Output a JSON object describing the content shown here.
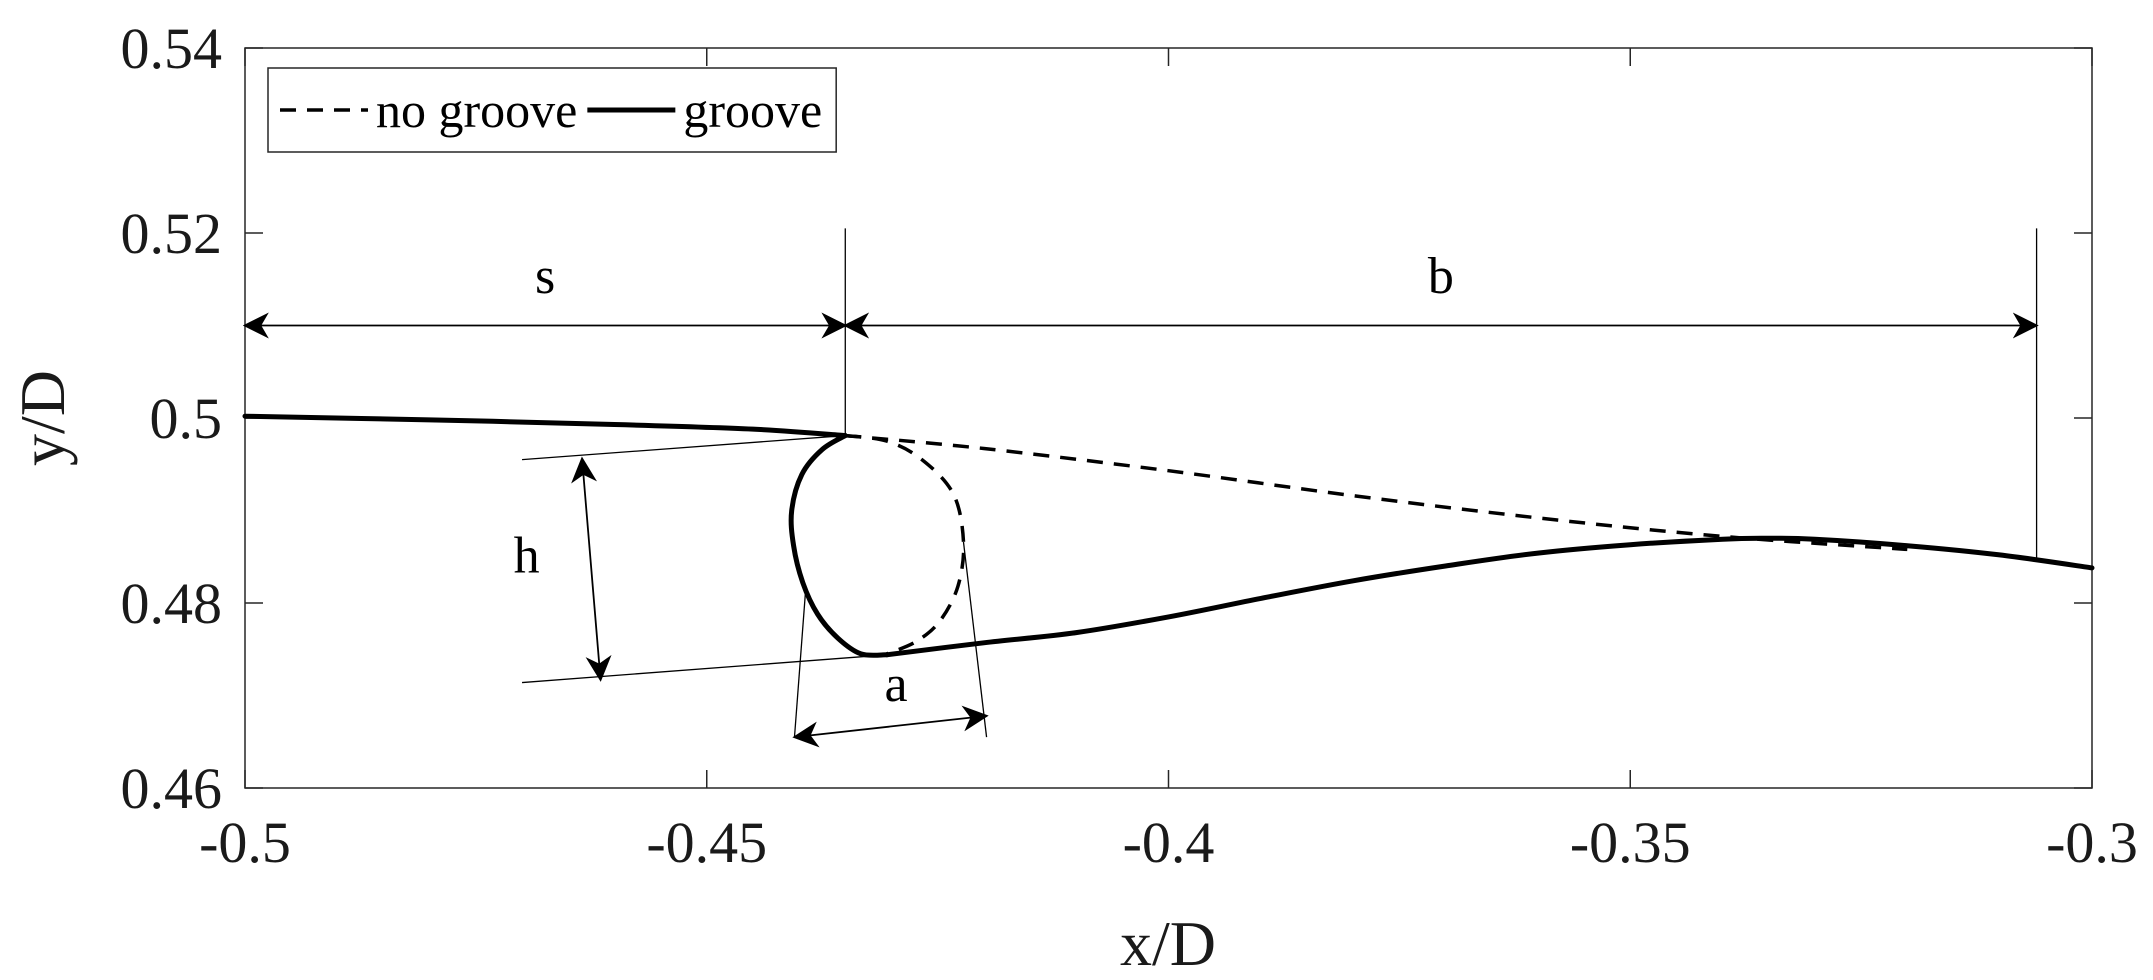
{
  "chart_data": {
    "type": "line",
    "xlabel": "x/D",
    "ylabel": "y/D",
    "xlim": [
      -0.5,
      -0.3
    ],
    "ylim": [
      0.46,
      0.54
    ],
    "xticks": [
      -0.5,
      -0.45,
      -0.4,
      -0.35,
      -0.3
    ],
    "xtick_labels": [
      "-0.5",
      "-0.45",
      "-0.4",
      "-0.35",
      "-0.3"
    ],
    "yticks": [
      0.46,
      0.48,
      0.5,
      0.52,
      0.54
    ],
    "ytick_labels": [
      "0.46",
      "0.48",
      "0.5",
      "0.52",
      "0.54"
    ],
    "grid": false,
    "legend": {
      "placement": "top-left",
      "orientation": "horizontal",
      "entries": [
        {
          "label": "no groove",
          "style": "dashed"
        },
        {
          "label": "groove",
          "style": "solid"
        }
      ]
    },
    "series": [
      {
        "name": "no groove",
        "style": "dashed",
        "x": [
          -0.435,
          -0.42,
          -0.4,
          -0.38,
          -0.36,
          -0.34,
          -0.32
        ],
        "y": [
          0.4981,
          0.4967,
          0.4943,
          0.4916,
          0.4892,
          0.4872,
          0.4858
        ]
      },
      {
        "name": "no groove",
        "style": "dashed",
        "x": [
          -0.435,
          -0.4305,
          -0.4267,
          -0.4233,
          -0.4222,
          -0.4228,
          -0.4248,
          -0.4274,
          -0.4305
        ],
        "y": [
          0.4981,
          0.4975,
          0.4955,
          0.4918,
          0.4866,
          0.4818,
          0.478,
          0.4758,
          0.4745
        ]
      },
      {
        "name": "groove",
        "style": "solid",
        "x": [
          -0.5,
          -0.48,
          -0.46,
          -0.445,
          -0.435
        ],
        "y": [
          0.5002,
          0.4998,
          0.4993,
          0.4988,
          0.4981
        ]
      },
      {
        "name": "groove",
        "style": "solid",
        "x": [
          -0.435,
          -0.4375,
          -0.4397,
          -0.4408,
          -0.4406,
          -0.4396,
          -0.438,
          -0.4358,
          -0.4333,
          -0.4305
        ],
        "y": [
          0.4981,
          0.4966,
          0.4939,
          0.49,
          0.4862,
          0.4822,
          0.4788,
          0.4762,
          0.4745,
          0.4744
        ]
      },
      {
        "name": "groove",
        "style": "solid",
        "x": [
          -0.4305,
          -0.42,
          -0.41,
          -0.4,
          -0.39,
          -0.38,
          -0.37,
          -0.36,
          -0.35,
          -0.34,
          -0.335,
          -0.33,
          -0.32,
          -0.31,
          -0.3
        ],
        "y": [
          0.4744,
          0.4757,
          0.4768,
          0.4785,
          0.4805,
          0.4824,
          0.484,
          0.4854,
          0.4863,
          0.4869,
          0.487,
          0.4869,
          0.4862,
          0.4852,
          0.4838
        ]
      }
    ],
    "annotations": [
      {
        "label": "s",
        "type": "horizontal-dimension",
        "from_x": -0.5,
        "to_x": -0.435,
        "at_y": 0.51,
        "label_y": 0.5135
      },
      {
        "label": "b",
        "type": "horizontal-dimension",
        "from_x": -0.435,
        "to_x": -0.306,
        "at_y": 0.51,
        "label_y": 0.5135
      },
      {
        "label": "h",
        "type": "dimension",
        "from": [
          -0.4635,
          0.4956
        ],
        "to": [
          -0.4615,
          0.4717
        ],
        "label_at": [
          -0.4695,
          0.4833
        ]
      },
      {
        "label": "a",
        "type": "dimension",
        "from": [
          -0.4405,
          0.4655
        ],
        "to": [
          -0.4197,
          0.4678
        ],
        "label_at": [
          -0.4295,
          0.4694
        ]
      }
    ],
    "guide_lines": [
      {
        "x": [
          -0.435,
          -0.435
        ],
        "y": [
          0.5205,
          0.4981
        ]
      },
      {
        "x": [
          -0.306,
          -0.306
        ],
        "y": [
          0.5205,
          0.4849
        ]
      },
      {
        "x": [
          -0.47,
          -0.435
        ],
        "y": [
          0.4955,
          0.4981
        ]
      },
      {
        "x": [
          -0.47,
          -0.4305
        ],
        "y": [
          0.4714,
          0.4744
        ]
      },
      {
        "x": [
          -0.4405,
          -0.4393
        ],
        "y": [
          0.4655,
          0.4813
        ]
      },
      {
        "x": [
          -0.4197,
          -0.4222
        ],
        "y": [
          0.4655,
          0.4866
        ]
      }
    ]
  }
}
